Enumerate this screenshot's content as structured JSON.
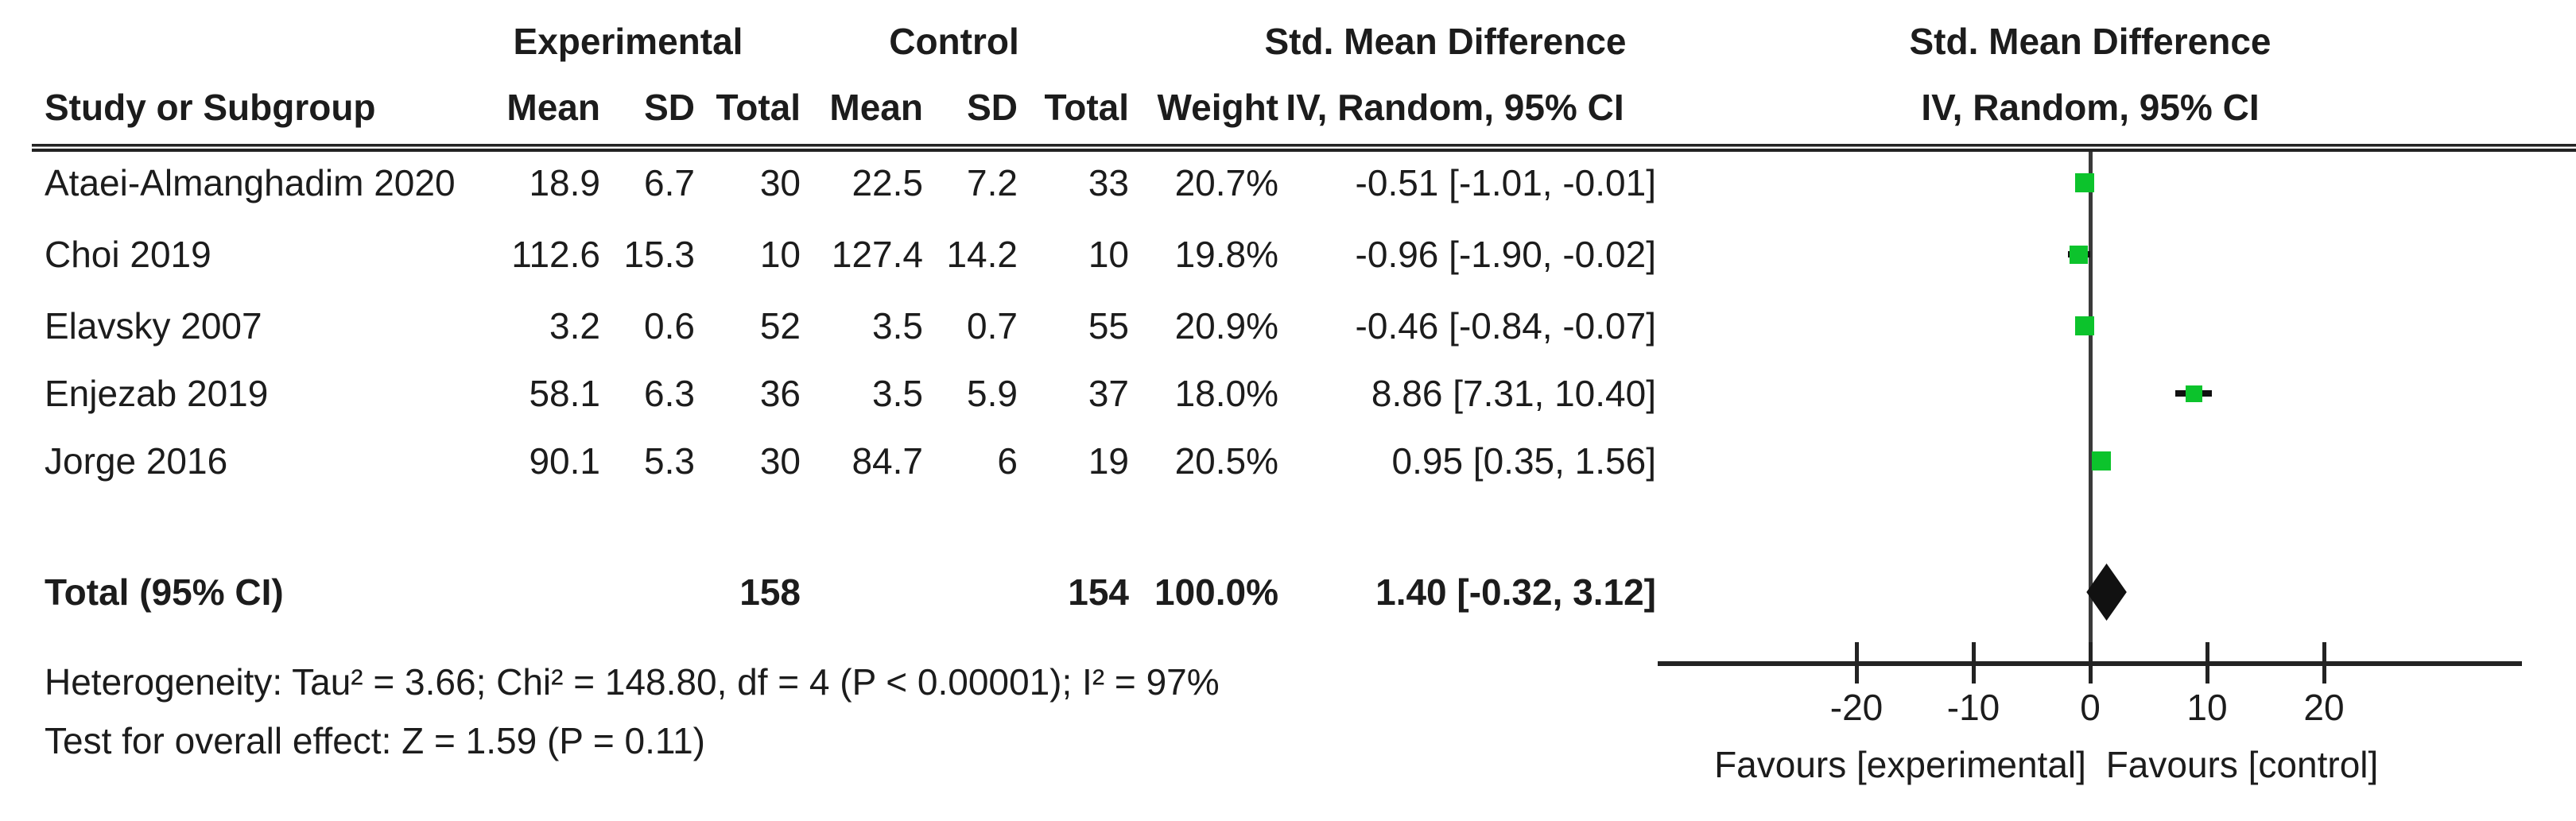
{
  "table": {
    "group_headers": {
      "experimental": "Experimental",
      "control": "Control",
      "smd_left": "Std. Mean Difference",
      "smd_right": "Std. Mean Difference"
    },
    "col_headers": {
      "study": "Study or Subgroup",
      "exp_mean": "Mean",
      "exp_sd": "SD",
      "exp_total": "Total",
      "ctrl_mean": "Mean",
      "ctrl_sd": "SD",
      "ctrl_total": "Total",
      "weight": "Weight",
      "iv_left": "IV, Random, 95% CI",
      "iv_right": "IV, Random, 95% CI"
    },
    "rows": [
      {
        "study": "Ataei-Almanghadim 2020",
        "exp_mean": "18.9",
        "exp_sd": "6.7",
        "exp_total": "30",
        "ctrl_mean": "22.5",
        "ctrl_sd": "7.2",
        "ctrl_total": "33",
        "weight": "20.7%",
        "smd_ci": "-0.51 [-1.01, -0.01]"
      },
      {
        "study": "Choi 2019",
        "exp_mean": "112.6",
        "exp_sd": "15.3",
        "exp_total": "10",
        "ctrl_mean": "127.4",
        "ctrl_sd": "14.2",
        "ctrl_total": "10",
        "weight": "19.8%",
        "smd_ci": "-0.96 [-1.90, -0.02]"
      },
      {
        "study": "Elavsky 2007",
        "exp_mean": "3.2",
        "exp_sd": "0.6",
        "exp_total": "52",
        "ctrl_mean": "3.5",
        "ctrl_sd": "0.7",
        "ctrl_total": "55",
        "weight": "20.9%",
        "smd_ci": "-0.46 [-0.84, -0.07]"
      },
      {
        "study": "Enjezab 2019",
        "exp_mean": "58.1",
        "exp_sd": "6.3",
        "exp_total": "36",
        "ctrl_mean": "3.5",
        "ctrl_sd": "5.9",
        "ctrl_total": "37",
        "weight": "18.0%",
        "smd_ci": "8.86 [7.31, 10.40]"
      },
      {
        "study": "Jorge 2016",
        "exp_mean": "90.1",
        "exp_sd": "5.3",
        "exp_total": "30",
        "ctrl_mean": "84.7",
        "ctrl_sd": "6",
        "ctrl_total": "19",
        "weight": "20.5%",
        "smd_ci": "0.95 [0.35, 1.56]"
      }
    ],
    "total_row": {
      "label": "Total (95% CI)",
      "exp_total": "158",
      "ctrl_total": "154",
      "weight": "100.0%",
      "smd_ci": "1.40 [-0.32, 3.12]"
    }
  },
  "footer": {
    "heterogeneity": "Heterogeneity: Tau² = 3.66; Chi² = 148.80, df = 4 (P < 0.00001); I² = 97%",
    "overall_effect": "Test for overall effect: Z = 1.59 (P = 0.11)"
  },
  "axis": {
    "ticks": [
      "-20",
      "-10",
      "0",
      "10",
      "20"
    ],
    "favours_left": "Favours [experimental]",
    "favours_right": "Favours [control]"
  },
  "colors": {
    "marker_green": "#0CC32C",
    "diamond_black": "#111111",
    "line_dark": "#232323"
  },
  "chart_data": {
    "type": "forest",
    "effect_measure": "Std. Mean Difference, IV, Random, 95% CI",
    "title": "Std. Mean Difference",
    "x_ticks": [
      -20,
      -10,
      0,
      10,
      20
    ],
    "xlim": [
      -37,
      37
    ],
    "favours": [
      "Favours [experimental]",
      "Favours [control]"
    ],
    "studies": [
      {
        "study": "Ataei-Almanghadim 2020",
        "smd": -0.51,
        "ci_low": -1.01,
        "ci_high": -0.01,
        "weight_pct": 20.7
      },
      {
        "study": "Choi 2019",
        "smd": -0.96,
        "ci_low": -1.9,
        "ci_high": -0.02,
        "weight_pct": 19.8
      },
      {
        "study": "Elavsky 2007",
        "smd": -0.46,
        "ci_low": -0.84,
        "ci_high": -0.07,
        "weight_pct": 20.9
      },
      {
        "study": "Enjezab 2019",
        "smd": 8.86,
        "ci_low": 7.31,
        "ci_high": 10.4,
        "weight_pct": 18.0
      },
      {
        "study": "Jorge 2016",
        "smd": 0.95,
        "ci_low": 0.35,
        "ci_high": 1.56,
        "weight_pct": 20.5
      }
    ],
    "total": {
      "label": "Total (95% CI)",
      "smd": 1.4,
      "ci_low": -0.32,
      "ci_high": 3.12,
      "exp_total": 158,
      "ctrl_total": 154,
      "weight_pct": 100.0
    },
    "heterogeneity": {
      "tau2": 3.66,
      "chi2": 148.8,
      "df": 4,
      "p": "< 0.00001",
      "i2_pct": 97
    },
    "overall_effect": {
      "z": 1.59,
      "p": 0.11
    }
  }
}
